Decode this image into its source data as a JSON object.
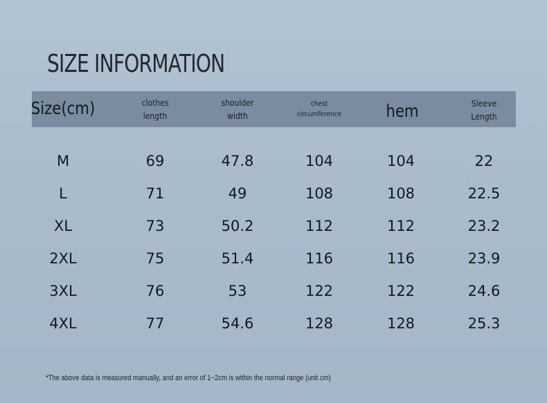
{
  "title": "SIZE INFORMATION",
  "header": {
    "size": "Size(cm)",
    "clothes_length": [
      "clothes",
      "length"
    ],
    "shoulder_width": [
      "shoulder",
      "width"
    ],
    "chest": [
      "chest",
      "circumference"
    ],
    "hem": "hem",
    "sleeve": [
      "Sleeve",
      "Length"
    ]
  },
  "rows": [
    {
      "size": "M",
      "clothes_length": "69",
      "shoulder_width": "47.8",
      "chest": "104",
      "hem": "104",
      "sleeve": "22"
    },
    {
      "size": "L",
      "clothes_length": "71",
      "shoulder_width": "49",
      "chest": "108",
      "hem": "108",
      "sleeve": "22.5"
    },
    {
      "size": "XL",
      "clothes_length": "73",
      "shoulder_width": "50.2",
      "chest": "112",
      "hem": "112",
      "sleeve": "23.2"
    },
    {
      "size": "2XL",
      "clothes_length": "75",
      "shoulder_width": "51.4",
      "chest": "116",
      "hem": "116",
      "sleeve": "23.9"
    },
    {
      "size": "3XL",
      "clothes_length": "76",
      "shoulder_width": "53",
      "chest": "122",
      "hem": "122",
      "sleeve": "24.6"
    },
    {
      "size": "4XL",
      "clothes_length": "77",
      "shoulder_width": "54.6",
      "chest": "128",
      "hem": "128",
      "sleeve": "25.3"
    }
  ],
  "note": "*The above data is measured manually, and an error of 1~2cm is within the normal range (unit cm)",
  "colors": {
    "background": "#b3c4d4",
    "header_band": "#7a8da0",
    "text": "#15171a"
  }
}
